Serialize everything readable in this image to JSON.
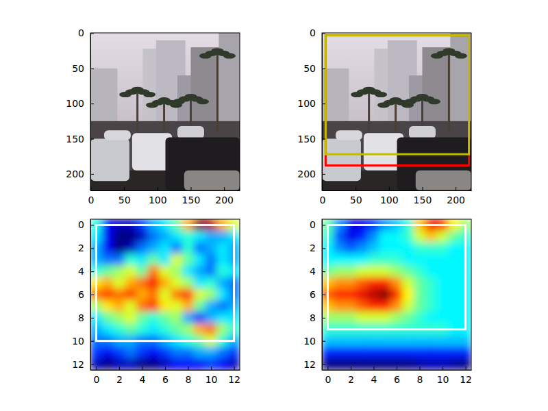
{
  "chart_data": [
    {
      "type": "image",
      "xlim": [
        -0.5,
        223.5
      ],
      "ylim": [
        223.5,
        -0.5
      ],
      "xticks": [
        0,
        50,
        100,
        150,
        200
      ],
      "yticks": [
        0,
        50,
        100,
        150,
        200
      ],
      "boxes": []
    },
    {
      "type": "image",
      "xlim": [
        -0.5,
        223.5
      ],
      "ylim": [
        223.5,
        -0.5
      ],
      "xticks": [
        0,
        50,
        100,
        150,
        200
      ],
      "yticks": [
        0,
        50,
        100,
        150,
        200
      ],
      "boxes": [
        {
          "color": "#ff0000",
          "x": [
            5,
            220
          ],
          "y": [
            3,
            188
          ]
        },
        {
          "color": "#bfbf00",
          "x": [
            5,
            220
          ],
          "y": [
            3,
            172
          ]
        }
      ]
    },
    {
      "type": "heatmap",
      "xlim": [
        -0.5,
        12.5
      ],
      "ylim": [
        12.5,
        -0.5
      ],
      "xticks": [
        0,
        2,
        4,
        6,
        8,
        10,
        12
      ],
      "yticks": [
        0,
        2,
        4,
        6,
        8,
        10,
        12
      ],
      "cells": [
        [
          0.45,
          0.2,
          0.15,
          0.15,
          0.25,
          0.35,
          0.4,
          0.5,
          0.7,
          0.95,
          0.9,
          0.7,
          0.6
        ],
        [
          0.4,
          0.2,
          0.1,
          0.1,
          0.15,
          0.3,
          0.35,
          0.4,
          0.45,
          0.4,
          0.35,
          0.35,
          0.4
        ],
        [
          0.35,
          0.2,
          0.1,
          0.15,
          0.3,
          0.35,
          0.4,
          0.3,
          0.45,
          0.3,
          0.35,
          0.4,
          0.35
        ],
        [
          0.35,
          0.3,
          0.3,
          0.45,
          0.4,
          0.5,
          0.4,
          0.6,
          0.5,
          0.4,
          0.3,
          0.4,
          0.35
        ],
        [
          0.45,
          0.5,
          0.55,
          0.6,
          0.5,
          0.75,
          0.6,
          0.55,
          0.4,
          0.35,
          0.3,
          0.45,
          0.4
        ],
        [
          0.65,
          0.7,
          0.6,
          0.7,
          0.75,
          0.85,
          0.7,
          0.6,
          0.55,
          0.4,
          0.45,
          0.35,
          0.3
        ],
        [
          0.75,
          0.8,
          0.75,
          0.8,
          0.7,
          0.75,
          0.6,
          0.75,
          0.8,
          0.6,
          0.55,
          0.4,
          0.3
        ],
        [
          0.55,
          0.65,
          0.7,
          0.6,
          0.75,
          0.8,
          0.65,
          0.6,
          0.7,
          0.5,
          0.35,
          0.3,
          0.35
        ],
        [
          0.4,
          0.5,
          0.55,
          0.6,
          0.5,
          0.45,
          0.5,
          0.55,
          0.35,
          0.25,
          0.35,
          0.4,
          0.4
        ],
        [
          0.35,
          0.4,
          0.45,
          0.5,
          0.45,
          0.4,
          0.45,
          0.5,
          0.55,
          0.7,
          0.75,
          0.55,
          0.45
        ],
        [
          0.3,
          0.3,
          0.35,
          0.35,
          0.3,
          0.3,
          0.35,
          0.4,
          0.45,
          0.5,
          0.6,
          0.45,
          0.35
        ],
        [
          0.25,
          0.2,
          0.25,
          0.3,
          0.25,
          0.2,
          0.25,
          0.3,
          0.3,
          0.35,
          0.35,
          0.3,
          0.25
        ],
        [
          0.15,
          0.1,
          0.15,
          0.15,
          0.1,
          0.1,
          0.15,
          0.2,
          0.2,
          0.2,
          0.25,
          0.2,
          0.15
        ]
      ],
      "boxes": [
        {
          "color": "#ffffff",
          "x": [
            0,
            12
          ],
          "y": [
            0,
            10
          ]
        }
      ]
    },
    {
      "type": "heatmap",
      "xlim": [
        -0.5,
        12.5
      ],
      "ylim": [
        12.5,
        -0.5
      ],
      "xticks": [
        0,
        2,
        4,
        6,
        8,
        10,
        12
      ],
      "yticks": [
        0,
        2,
        4,
        6,
        8,
        10,
        12
      ],
      "cells": [
        [
          0.5,
          0.3,
          0.15,
          0.15,
          0.2,
          0.3,
          0.35,
          0.45,
          0.7,
          0.9,
          0.85,
          0.65,
          0.55
        ],
        [
          0.45,
          0.25,
          0.15,
          0.2,
          0.3,
          0.4,
          0.4,
          0.45,
          0.6,
          0.7,
          0.6,
          0.5,
          0.45
        ],
        [
          0.4,
          0.3,
          0.25,
          0.3,
          0.35,
          0.4,
          0.4,
          0.4,
          0.45,
          0.45,
          0.45,
          0.4,
          0.4
        ],
        [
          0.4,
          0.4,
          0.4,
          0.4,
          0.45,
          0.45,
          0.45,
          0.4,
          0.4,
          0.4,
          0.4,
          0.4,
          0.4
        ],
        [
          0.5,
          0.55,
          0.55,
          0.6,
          0.6,
          0.6,
          0.55,
          0.5,
          0.45,
          0.4,
          0.4,
          0.4,
          0.4
        ],
        [
          0.7,
          0.75,
          0.75,
          0.8,
          0.85,
          0.85,
          0.75,
          0.6,
          0.5,
          0.45,
          0.4,
          0.4,
          0.4
        ],
        [
          0.8,
          0.85,
          0.85,
          0.9,
          0.95,
          1.0,
          0.85,
          0.65,
          0.5,
          0.45,
          0.4,
          0.4,
          0.4
        ],
        [
          0.7,
          0.75,
          0.75,
          0.8,
          0.85,
          0.85,
          0.75,
          0.6,
          0.5,
          0.45,
          0.4,
          0.4,
          0.4
        ],
        [
          0.55,
          0.55,
          0.55,
          0.6,
          0.6,
          0.6,
          0.55,
          0.5,
          0.45,
          0.4,
          0.4,
          0.4,
          0.4
        ],
        [
          0.45,
          0.45,
          0.45,
          0.45,
          0.45,
          0.45,
          0.45,
          0.45,
          0.45,
          0.45,
          0.45,
          0.4,
          0.4
        ],
        [
          0.35,
          0.35,
          0.35,
          0.35,
          0.35,
          0.35,
          0.35,
          0.35,
          0.35,
          0.35,
          0.35,
          0.35,
          0.35
        ],
        [
          0.2,
          0.2,
          0.2,
          0.2,
          0.2,
          0.2,
          0.2,
          0.2,
          0.2,
          0.2,
          0.2,
          0.2,
          0.2
        ],
        [
          0.05,
          0.05,
          0.05,
          0.05,
          0.05,
          0.05,
          0.05,
          0.05,
          0.08,
          0.1,
          0.1,
          0.08,
          0.05
        ]
      ],
      "boxes": [
        {
          "color": "#ffffff",
          "x": [
            0,
            12
          ],
          "y": [
            0,
            9
          ]
        }
      ]
    }
  ]
}
